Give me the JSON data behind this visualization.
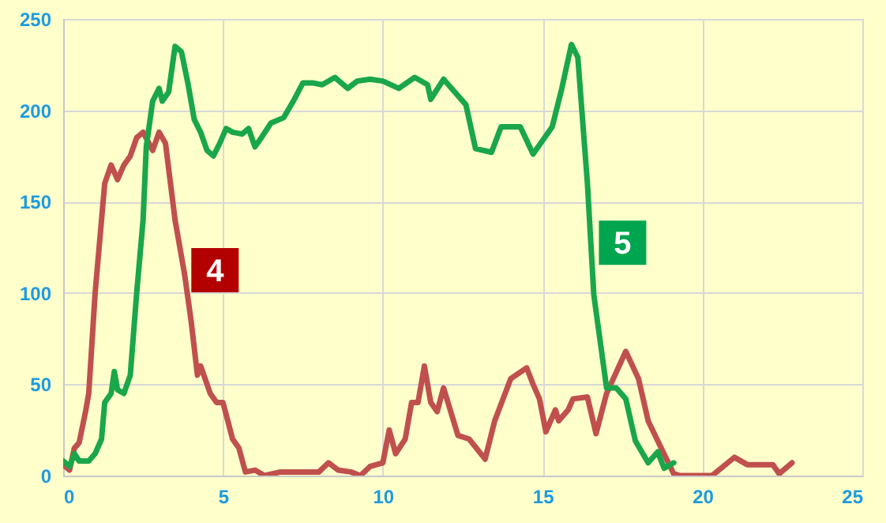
{
  "chart_data": {
    "type": "line",
    "xlim": [
      0,
      25
    ],
    "ylim": [
      0,
      250
    ],
    "xticks": [
      0,
      5,
      10,
      15,
      20,
      25
    ],
    "yticks": [
      0,
      50,
      100,
      150,
      200,
      250
    ],
    "grid": true,
    "series": [
      {
        "name": "4",
        "color": "#c0504d",
        "x": [
          0,
          0.2,
          0.35,
          0.5,
          0.7,
          0.8,
          1.0,
          1.2,
          1.3,
          1.5,
          1.7,
          1.9,
          2.1,
          2.3,
          2.5,
          2.8,
          3.0,
          3.2,
          3.5,
          3.8,
          4.0,
          4.2,
          4.3,
          4.6,
          4.8,
          5.0,
          5.3,
          5.5,
          5.7,
          6.0,
          6.3,
          6.8,
          7.5,
          8.0,
          8.3,
          8.6,
          9.0,
          9.3,
          9.6,
          10.0,
          10.2,
          10.4,
          10.7,
          10.9,
          11.1,
          11.3,
          11.5,
          11.7,
          11.9,
          12.35,
          12.7,
          13.2,
          13.5,
          14.0,
          14.5,
          14.7,
          14.9,
          15.1,
          15.4,
          15.5,
          15.8,
          15.95,
          16.4,
          16.67,
          17.0,
          17.6,
          18.0,
          18.3,
          18.6,
          19.1,
          19.3,
          20.3,
          21.0,
          21.4,
          22.2,
          22.4,
          22.8
        ],
        "values": [
          6,
          3,
          15,
          18,
          35,
          45,
          100,
          140,
          160,
          170,
          162,
          170,
          175,
          185,
          188,
          178,
          188,
          182,
          140,
          110,
          85,
          55,
          60,
          45,
          40,
          40,
          20,
          15,
          2,
          3,
          0,
          2,
          2,
          2,
          7,
          3,
          2,
          0,
          5,
          7,
          25,
          12,
          20,
          40,
          40,
          60,
          40,
          35,
          48,
          22,
          20,
          9,
          30,
          53,
          59,
          50,
          42,
          24,
          36,
          30,
          36,
          42,
          43,
          23,
          45,
          68,
          53,
          30,
          19,
          1,
          0,
          0,
          10,
          6,
          6,
          1,
          7
        ]
      },
      {
        "name": "5",
        "color": "#1aa64a",
        "x": [
          0,
          0.2,
          0.35,
          0.5,
          0.8,
          1.0,
          1.2,
          1.3,
          1.5,
          1.6,
          1.7,
          1.9,
          2.1,
          2.3,
          2.5,
          2.6,
          2.8,
          3.0,
          3.1,
          3.3,
          3.5,
          3.7,
          3.9,
          4.1,
          4.3,
          4.5,
          4.7,
          4.9,
          5.1,
          5.3,
          5.6,
          5.8,
          6.0,
          6.2,
          6.5,
          6.9,
          7.2,
          7.5,
          7.8,
          8.1,
          8.5,
          8.9,
          9.2,
          9.6,
          10.0,
          10.5,
          11.0,
          11.4,
          11.5,
          11.9,
          12.6,
          12.9,
          13.4,
          13.7,
          14.3,
          14.7,
          15.3,
          15.6,
          15.9,
          16.1,
          16.4,
          16.6,
          17.0,
          17.3,
          17.6,
          17.9,
          18.3,
          18.6,
          18.8,
          19.1
        ],
        "values": [
          8,
          5,
          12,
          8,
          8,
          12,
          20,
          40,
          45,
          57,
          47,
          45,
          55,
          100,
          140,
          180,
          205,
          212,
          205,
          210,
          235,
          232,
          215,
          195,
          188,
          178,
          175,
          182,
          190,
          188,
          187,
          190,
          180,
          185,
          193,
          196,
          205,
          215,
          215,
          214,
          218,
          212,
          216,
          217,
          216,
          212,
          218,
          214,
          206,
          217,
          203,
          179,
          177,
          191,
          191,
          176,
          191,
          212,
          236,
          229,
          160,
          99,
          48,
          48,
          42,
          19,
          7,
          13,
          4,
          7
        ]
      }
    ]
  }
}
